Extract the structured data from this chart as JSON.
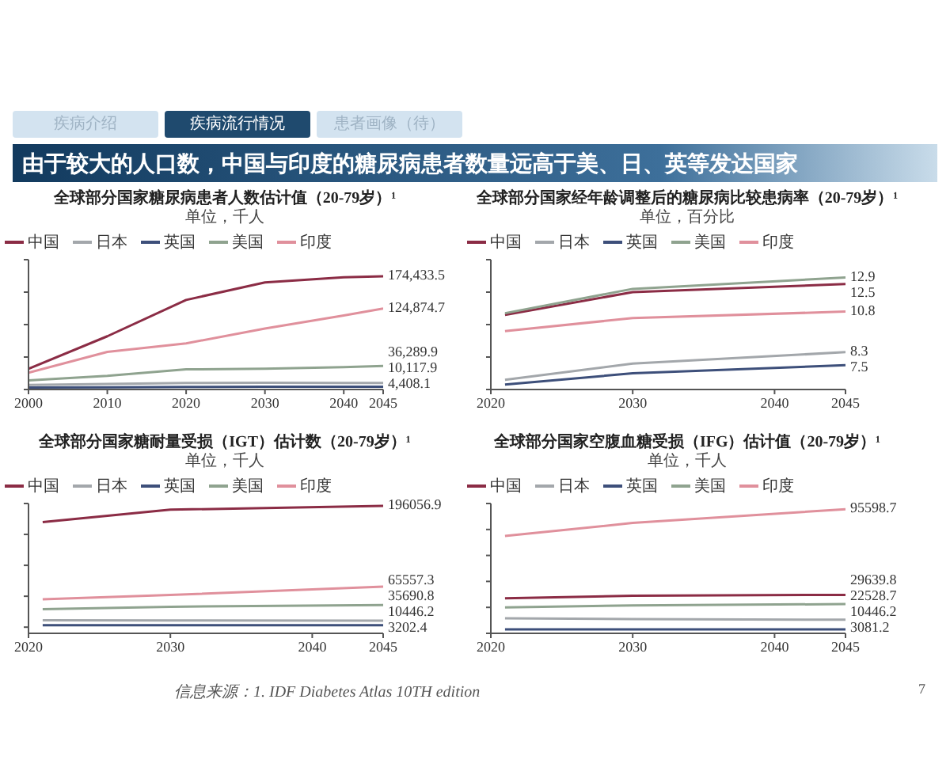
{
  "chart_data": [
    {
      "type": "line",
      "title": "全球部分国家糖尿病患者人数估计值（20-79岁）¹",
      "subtitle": "单位，千人",
      "annotations": [
        "疾病介绍",
        "疾病流行情况",
        "患者画像（待）",
        "由于较大的人口数，中国与印度的糖尿病患者数量远高于美、日、英等发达国家"
      ],
      "legend": "top",
      "marker": "none",
      "line_style": "solid",
      "tick_labels": "x",
      "x": [
        2000,
        2010,
        2020,
        2030,
        2040,
        2045
      ],
      "xlim": [
        2000,
        2045
      ],
      "xticks": [
        2000,
        2010,
        2020,
        2030,
        2040,
        2045
      ],
      "ylim": [
        0,
        200000
      ],
      "yticks": [
        {
          "value": 0,
          "label": null
        },
        {
          "value": 50000,
          "label": null
        },
        {
          "value": 100000,
          "label": null
        },
        {
          "value": 150000,
          "label": null
        },
        {
          "value": 200000,
          "label": null
        }
      ],
      "series": [
        {
          "name": "中国",
          "color": "#8b2c45",
          "values": [
            32000,
            82000,
            138000,
            165000,
            173000,
            174433.5
          ],
          "value_labels": [
            null,
            null,
            null,
            null,
            null,
            "174,433.5"
          ]
        },
        {
          "name": "日本",
          "color": "#a3a7ab",
          "values": [
            7000,
            8500,
            10000,
            10500,
            10200,
            10117.9
          ],
          "value_labels": [
            null,
            null,
            null,
            null,
            null,
            "10,117.9"
          ]
        },
        {
          "name": "英国",
          "color": "#3d4f7a",
          "values": [
            3000,
            3500,
            4000,
            4200,
            4350,
            4408.1
          ],
          "value_labels": [
            null,
            null,
            null,
            null,
            null,
            "4,408.1"
          ]
        },
        {
          "name": "美国",
          "color": "#8fa38f",
          "values": [
            14000,
            21000,
            31000,
            32000,
            34500,
            36289.9
          ],
          "value_labels": [
            null,
            null,
            null,
            null,
            null,
            "36,289.9"
          ]
        },
        {
          "name": "印度",
          "color": "#e0909c",
          "values": [
            26000,
            58000,
            71000,
            94000,
            114000,
            124874.7
          ],
          "value_labels": [
            null,
            null,
            null,
            null,
            null,
            "124,874.7"
          ]
        }
      ]
    },
    {
      "type": "line",
      "title": "全球部分国家经年龄调整后的糖尿病比较患病率（20-79岁）¹",
      "subtitle": "单位，百分比",
      "legend": "top",
      "marker": "none",
      "line_style": "solid",
      "tick_labels": "x",
      "x": [
        2021,
        2030,
        2045
      ],
      "xlim": [
        2020,
        2045
      ],
      "xticks": [
        2020,
        2030,
        2040,
        2045
      ],
      "ylim": [
        6,
        14
      ],
      "yticks": [
        {
          "value": 6,
          "label": null
        },
        {
          "value": 8,
          "label": null
        },
        {
          "value": 10,
          "label": null
        },
        {
          "value": 12,
          "label": null
        },
        {
          "value": 14,
          "label": null
        }
      ],
      "series": [
        {
          "name": "中国",
          "color": "#8b2c45",
          "values": [
            10.6,
            12.0,
            12.5
          ],
          "value_labels": [
            null,
            null,
            "12.5"
          ]
        },
        {
          "name": "日本",
          "color": "#a3a7ab",
          "values": [
            6.6,
            7.6,
            8.3
          ],
          "value_labels": [
            null,
            null,
            "8.3"
          ]
        },
        {
          "name": "英国",
          "color": "#3d4f7a",
          "values": [
            6.3,
            7.0,
            7.5
          ],
          "value_labels": [
            null,
            null,
            "7.5"
          ]
        },
        {
          "name": "美国",
          "color": "#8fa38f",
          "values": [
            10.7,
            12.2,
            12.9
          ],
          "value_labels": [
            null,
            null,
            "12.9"
          ]
        },
        {
          "name": "印度",
          "color": "#e0909c",
          "values": [
            9.6,
            10.4,
            10.8
          ],
          "value_labels": [
            null,
            null,
            "10.8"
          ]
        }
      ]
    },
    {
      "type": "line",
      "title": "全球部分国家糖耐量受损（IGT）估计数（20-79岁）¹",
      "subtitle": "单位，千人",
      "legend": "top",
      "marker": "none",
      "line_style": "solid",
      "tick_labels": "x",
      "x": [
        2021,
        2030,
        2045
      ],
      "xlim": [
        2020,
        2045
      ],
      "xticks": [
        2020,
        2030,
        2040,
        2045
      ],
      "ylim": [
        -10000,
        200000
      ],
      "yticks": [
        {
          "value": 0,
          "label": null
        },
        {
          "value": 50000,
          "label": null
        },
        {
          "value": 100000,
          "label": null
        },
        {
          "value": 150000,
          "label": null
        },
        {
          "value": 200000,
          "label": null
        }
      ],
      "series": [
        {
          "name": "中国",
          "color": "#8b2c45",
          "values": [
            170000,
            190000,
            196056.9
          ],
          "value_labels": [
            null,
            null,
            "196056.9"
          ]
        },
        {
          "name": "日本",
          "color": "#a3a7ab",
          "values": [
            11000,
            10800,
            10446.2
          ],
          "value_labels": [
            null,
            null,
            "10446.2"
          ]
        },
        {
          "name": "英国",
          "color": "#3d4f7a",
          "values": [
            3000,
            3100,
            3202.4
          ],
          "value_labels": [
            null,
            null,
            "3202.4"
          ]
        },
        {
          "name": "美国",
          "color": "#8fa38f",
          "values": [
            29000,
            33000,
            35690.8
          ],
          "value_labels": [
            null,
            null,
            "35690.8"
          ]
        },
        {
          "name": "印度",
          "color": "#e0909c",
          "values": [
            45000,
            52000,
            65557.3
          ],
          "value_labels": [
            null,
            null,
            "65557.3"
          ]
        }
      ]
    },
    {
      "type": "line",
      "title": "全球部分国家空腹血糖受损（IFG）估计值（20-79岁）¹",
      "subtitle": "单位，千人",
      "annotations": [
        "信息来源：1. IDF Diabetes Atlas 10TH edition",
        "7"
      ],
      "legend": "top",
      "marker": "none",
      "line_style": "solid",
      "tick_labels": "x",
      "x": [
        2021,
        2030,
        2045
      ],
      "xlim": [
        2020,
        2045
      ],
      "xticks": [
        2020,
        2030,
        2040,
        2045
      ],
      "ylim": [
        0,
        100000
      ],
      "yticks": [
        {
          "value": 0,
          "label": null
        },
        {
          "value": 20000,
          "label": null
        },
        {
          "value": 40000,
          "label": null
        },
        {
          "value": 60000,
          "label": null
        },
        {
          "value": 80000,
          "label": null
        },
        {
          "value": 100000,
          "label": null
        }
      ],
      "series": [
        {
          "name": "中国",
          "color": "#8b2c45",
          "values": [
            27000,
            29000,
            29639.8
          ],
          "value_labels": [
            null,
            null,
            "29639.8"
          ]
        },
        {
          "name": "日本",
          "color": "#a3a7ab",
          "values": [
            11600,
            11000,
            10446.2
          ],
          "value_labels": [
            null,
            null,
            "10446.2"
          ]
        },
        {
          "name": "英国",
          "color": "#3d4f7a",
          "values": [
            3000,
            3050,
            3081.2
          ],
          "value_labels": [
            null,
            null,
            "3081.2"
          ]
        },
        {
          "name": "美国",
          "color": "#8fa38f",
          "values": [
            20000,
            21500,
            22528.7
          ],
          "value_labels": [
            null,
            null,
            "22528.7"
          ]
        },
        {
          "name": "印度",
          "color": "#e0909c",
          "values": [
            75000,
            85000,
            95598.7
          ],
          "value_labels": [
            null,
            null,
            "95598.7"
          ]
        }
      ]
    }
  ]
}
